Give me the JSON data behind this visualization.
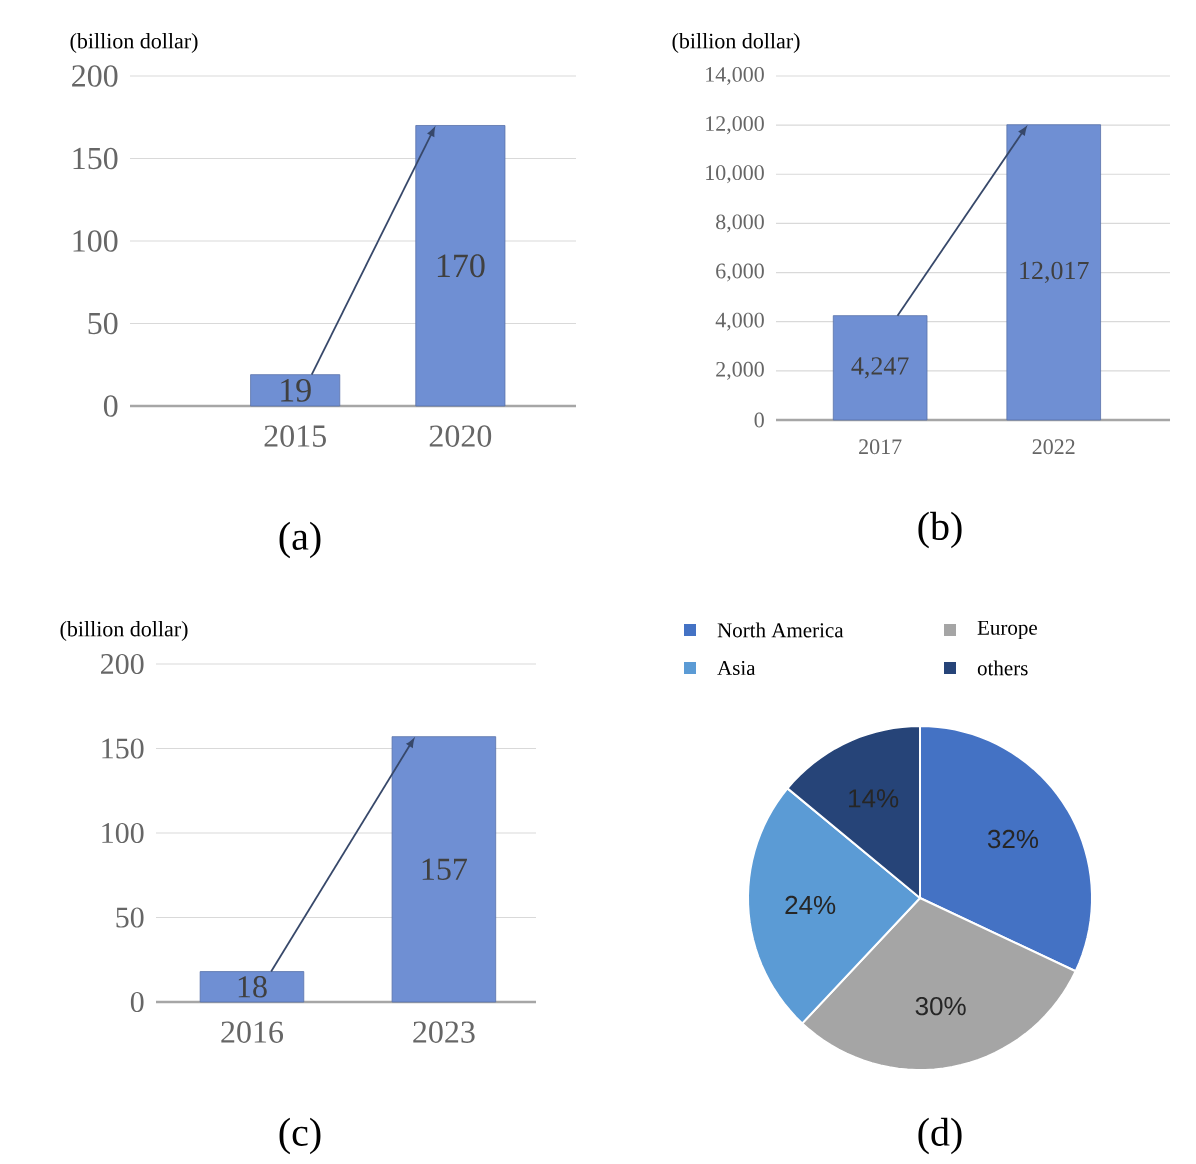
{
  "chart_data": [
    {
      "type": "bar",
      "ylabel": "(billion dollar)",
      "categories": [
        "2015",
        "2020"
      ],
      "values": [
        19,
        170
      ],
      "color": "#6f8fd3",
      "ylim": [
        0,
        200
      ],
      "yticks": [
        0,
        50,
        100,
        150,
        200
      ],
      "grid": "y",
      "data_labels": true,
      "annotations": [
        "(a)"
      ]
    },
    {
      "type": "bar",
      "ylabel": "(billion dollar)",
      "categories": [
        "2017",
        "2022"
      ],
      "values": [
        4247,
        12017
      ],
      "value_labels": [
        "4,247",
        "12,017"
      ],
      "color": "#6f8fd3",
      "ylim": [
        0,
        14000
      ],
      "yticks": [
        0,
        {
          "value": 2000,
          "label": "2,000"
        },
        {
          "value": 4000,
          "label": "4,000"
        },
        {
          "value": 6000,
          "label": "6,000"
        },
        {
          "value": 8000,
          "label": "8,000"
        },
        {
          "value": 10000,
          "label": "10,000"
        },
        {
          "value": 12000,
          "label": "12,000"
        },
        {
          "value": 14000,
          "label": "14,000"
        }
      ],
      "grid": "y",
      "annotations": [
        "(b)"
      ]
    },
    {
      "type": "bar",
      "ylabel": "(billion dollar)",
      "categories": [
        "2016",
        "2023"
      ],
      "values": [
        18,
        157
      ],
      "color": "#6f8fd3",
      "ylim": [
        0,
        200
      ],
      "yticks": [
        0,
        50,
        100,
        150,
        200
      ],
      "grid": "y",
      "data_labels": true,
      "annotations": [
        "(c)"
      ]
    },
    {
      "type": "pie",
      "categories": [
        "North America",
        "Europe",
        "Asia",
        "others"
      ],
      "values": [
        32,
        30,
        24,
        14
      ],
      "colors": [
        "#4472c4",
        "#a5a5a5",
        "#5b9bd5",
        "#264478"
      ],
      "value_labels": [
        "32%",
        "30%",
        "24%",
        "14%"
      ],
      "legend": "top",
      "annotations": [
        "(d)"
      ]
    }
  ]
}
